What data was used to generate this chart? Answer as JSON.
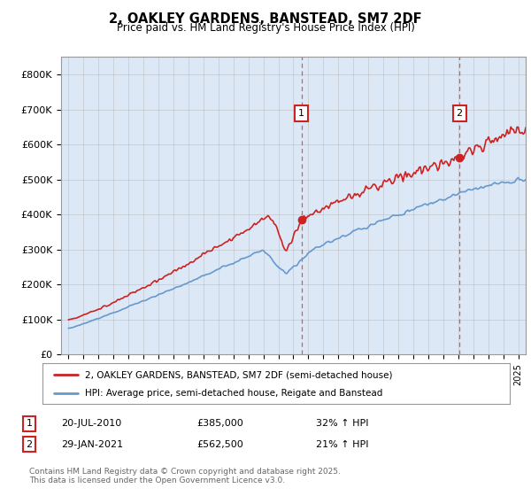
{
  "title": "2, OAKLEY GARDENS, BANSTEAD, SM7 2DF",
  "subtitle": "Price paid vs. HM Land Registry's House Price Index (HPI)",
  "plot_bg_color": "#dce8f5",
  "page_bg_color": "#ffffff",
  "ylabel_ticks": [
    "£0",
    "£100K",
    "£200K",
    "£300K",
    "£400K",
    "£500K",
    "£600K",
    "£700K",
    "£800K"
  ],
  "ytick_values": [
    0,
    100000,
    200000,
    300000,
    400000,
    500000,
    600000,
    700000,
    800000
  ],
  "ylim": [
    0,
    850000
  ],
  "xlim_start": 1994.5,
  "xlim_end": 2025.5,
  "marker1_x": 2010.55,
  "marker1_y": 385000,
  "marker1_label": "1",
  "marker1_date": "20-JUL-2010",
  "marker1_price": "£385,000",
  "marker1_hpi": "32% ↑ HPI",
  "marker2_x": 2021.08,
  "marker2_y": 562500,
  "marker2_label": "2",
  "marker2_date": "29-JAN-2021",
  "marker2_price": "£562,500",
  "marker2_hpi": "21% ↑ HPI",
  "legend_line1": "2, OAKLEY GARDENS, BANSTEAD, SM7 2DF (semi-detached house)",
  "legend_line2": "HPI: Average price, semi-detached house, Reigate and Banstead",
  "footer": "Contains HM Land Registry data © Crown copyright and database right 2025.\nThis data is licensed under the Open Government Licence v3.0.",
  "red_color": "#cc2222",
  "blue_color": "#6699cc",
  "grid_color": "#bbbbbb"
}
